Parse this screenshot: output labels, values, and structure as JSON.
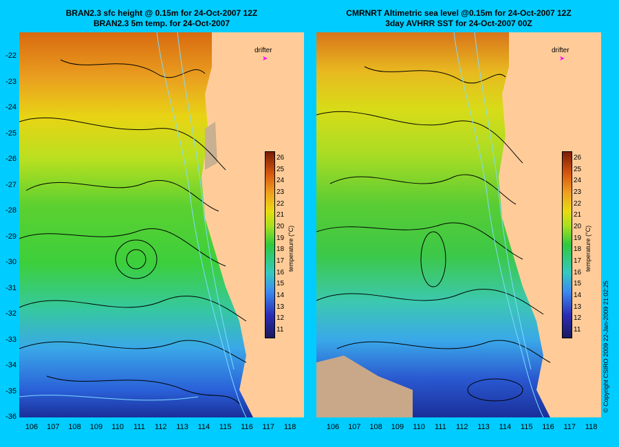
{
  "left_panel": {
    "title_line1": "BRAN2.3 sfc height @ 0.15m for 24-Oct-2007 12Z",
    "title_line2": "BRAN2.3 5m temp. for 24-Oct-2007"
  },
  "right_panel": {
    "title_line1": "CMRNRT Altimetric sea level  @0.15m  for 24-Oct-2007 12Z",
    "title_line2": "3day AVHRR SST for 24-Oct-2007 00Z"
  },
  "drifter_label": "drifter",
  "colorbar": {
    "label": "temperature (°C)",
    "ticks": [
      "26",
      "25",
      "24",
      "23",
      "22",
      "21",
      "20",
      "19",
      "18",
      "17",
      "16",
      "15",
      "14",
      "13",
      "12",
      "11"
    ]
  },
  "y_axis": [
    "-22",
    "-23",
    "-24",
    "-25",
    "-26",
    "-27",
    "-28",
    "-29",
    "-30",
    "-31",
    "-32",
    "-33",
    "-34",
    "-35",
    "-36"
  ],
  "x_axis": [
    "106",
    "107",
    "108",
    "109",
    "110",
    "111",
    "112",
    "113",
    "114",
    "115",
    "116",
    "117",
    "118"
  ],
  "copyright": "© Copyright CSIRO 2009   22-Jan-2009 21:02:25",
  "colors": {
    "land": "#ffcc99",
    "background": "#00ccff",
    "drifter": "#ff00ff"
  }
}
